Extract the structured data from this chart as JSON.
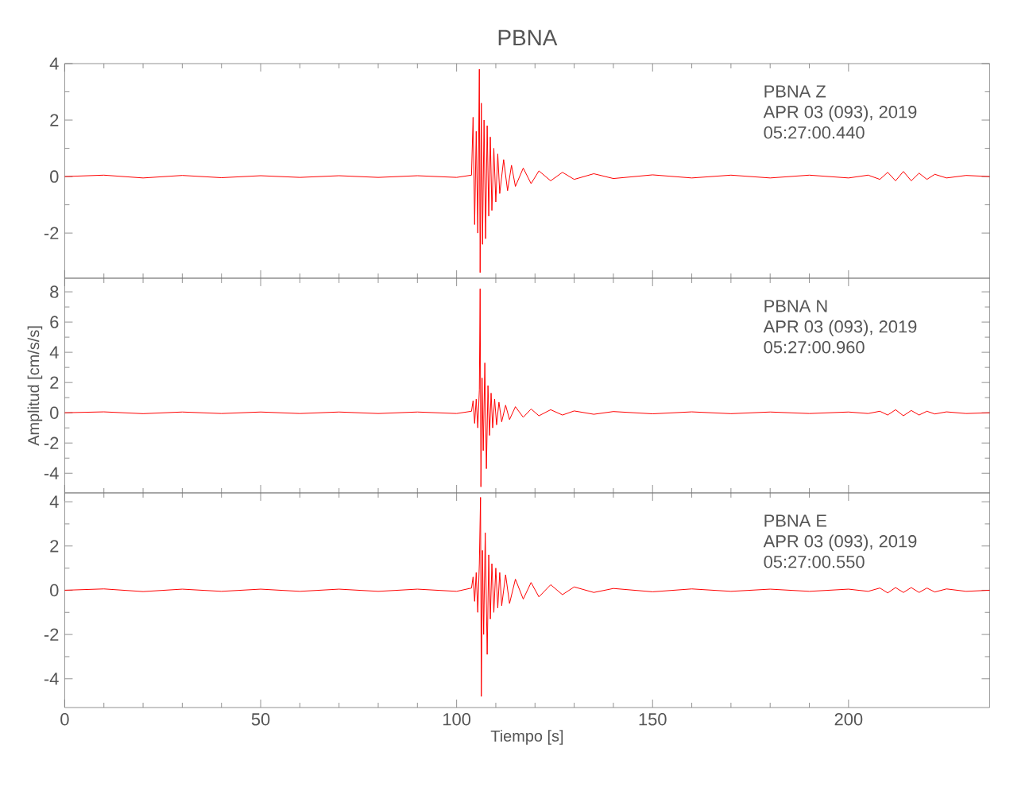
{
  "chart_data": [
    {
      "type": "line",
      "title": "PBNA",
      "annotations": [
        "PBNA   Z",
        "APR 03 (093), 2019",
        "05:27:00.440"
      ],
      "color": "#ff0000",
      "xlim": [
        0,
        236
      ],
      "ylim": [
        -3.6,
        4
      ],
      "xticks": [
        0,
        50,
        100,
        150,
        200
      ],
      "yticks": [
        -2,
        0,
        2,
        4
      ],
      "tick_labels": "y",
      "x": [
        0,
        10,
        20,
        30,
        40,
        50,
        60,
        70,
        80,
        90,
        100,
        103.8,
        104.2,
        104.6,
        105,
        105.4,
        105.8,
        106.0,
        106.3,
        106.6,
        107,
        107.4,
        107.8,
        108.2,
        108.6,
        109,
        109.5,
        110,
        110.5,
        111,
        112,
        113,
        114,
        115,
        117,
        119,
        121,
        124,
        127,
        130,
        135,
        140,
        150,
        160,
        170,
        180,
        190,
        200,
        205,
        208,
        210,
        212,
        214,
        216,
        218,
        220,
        222,
        225,
        230,
        236
      ],
      "values": [
        0,
        0.05,
        -0.05,
        0.04,
        -0.04,
        0.03,
        -0.03,
        0.03,
        -0.03,
        0.03,
        -0.03,
        0.05,
        2.1,
        -1.7,
        1.6,
        -2.0,
        3.8,
        -3.4,
        2.6,
        -2.4,
        2.0,
        -2.2,
        1.8,
        -1.4,
        1.4,
        -1.2,
        1.0,
        -0.9,
        0.8,
        -0.6,
        0.6,
        -0.5,
        0.4,
        -0.35,
        0.3,
        -0.25,
        0.2,
        -0.15,
        0.15,
        -0.1,
        0.1,
        -0.07,
        0.06,
        -0.05,
        0.05,
        -0.05,
        0.05,
        -0.05,
        0.05,
        -0.1,
        0.15,
        -0.15,
        0.18,
        -0.15,
        0.12,
        -0.1,
        0.08,
        -0.05,
        0.04,
        0
      ]
    },
    {
      "type": "line",
      "ylabel": "Amplitud [cm/s/s]",
      "annotations": [
        "PBNA   N",
        "APR 03 (093), 2019",
        "05:27:00.960"
      ],
      "color": "#ff0000",
      "xlim": [
        0,
        236
      ],
      "ylim": [
        -5.3,
        8.9
      ],
      "xticks": [
        0,
        50,
        100,
        150,
        200
      ],
      "yticks": [
        -4,
        -2,
        0,
        2,
        4,
        6,
        8
      ],
      "tick_labels": "y",
      "x": [
        0,
        10,
        20,
        30,
        40,
        50,
        60,
        70,
        80,
        90,
        100,
        103.8,
        104.2,
        104.6,
        105,
        105.4,
        105.8,
        106.0,
        106.2,
        106.5,
        106.8,
        107.2,
        107.6,
        108,
        108.4,
        108.8,
        109.2,
        109.7,
        110.2,
        110.8,
        111.5,
        112.5,
        113.5,
        115,
        117,
        119,
        121,
        124,
        127,
        130,
        135,
        140,
        150,
        160,
        170,
        180,
        190,
        200,
        205,
        208,
        210,
        212,
        214,
        216,
        218,
        220,
        222,
        225,
        230,
        236
      ],
      "values": [
        0,
        0.06,
        -0.06,
        0.05,
        -0.05,
        0.05,
        -0.05,
        0.05,
        -0.05,
        0.05,
        -0.05,
        0.1,
        0.8,
        -0.7,
        0.9,
        -1.0,
        1.5,
        8.2,
        -4.9,
        2.3,
        -2.5,
        3.3,
        -3.7,
        1.8,
        -1.5,
        1.3,
        -1.0,
        0.9,
        -0.8,
        0.7,
        -0.6,
        0.5,
        -0.45,
        0.4,
        -0.3,
        0.25,
        -0.2,
        0.2,
        -0.15,
        0.12,
        -0.1,
        0.08,
        -0.07,
        0.06,
        -0.06,
        0.05,
        -0.05,
        0.05,
        -0.05,
        0.1,
        -0.15,
        0.2,
        -0.2,
        0.15,
        -0.15,
        0.1,
        -0.08,
        0.06,
        -0.05,
        0
      ]
    },
    {
      "type": "line",
      "xlabel": "Tiempo [s]",
      "annotations": [
        "PBNA   E",
        "APR 03 (093), 2019",
        "05:27:00.550"
      ],
      "color": "#ff0000",
      "xlim": [
        0,
        236
      ],
      "ylim": [
        -5.3,
        4.4
      ],
      "xticks": [
        0,
        50,
        100,
        150,
        200
      ],
      "yticks": [
        -4,
        -2,
        0,
        2,
        4
      ],
      "x": [
        0,
        10,
        20,
        30,
        40,
        50,
        60,
        70,
        80,
        90,
        100,
        103.8,
        104.2,
        104.6,
        105,
        105.4,
        105.8,
        106.1,
        106.3,
        106.6,
        106.9,
        107.3,
        107.8,
        108.2,
        108.6,
        109,
        109.5,
        110,
        110.5,
        111,
        111.5,
        112.5,
        113.5,
        115,
        117,
        119,
        121,
        124,
        127,
        130,
        135,
        140,
        150,
        160,
        170,
        180,
        190,
        200,
        205,
        208,
        210,
        212,
        214,
        216,
        218,
        220,
        222,
        225,
        230,
        236
      ],
      "values": [
        0,
        0.06,
        -0.06,
        0.05,
        -0.05,
        0.05,
        -0.05,
        0.05,
        -0.05,
        0.05,
        -0.05,
        0.1,
        0.6,
        -0.5,
        0.8,
        -1.0,
        1.2,
        4.2,
        -4.8,
        1.8,
        -2.0,
        2.6,
        -2.9,
        1.6,
        -1.3,
        1.2,
        -1.0,
        1.0,
        -0.8,
        0.8,
        -0.7,
        0.7,
        -0.6,
        0.5,
        -0.4,
        0.35,
        -0.3,
        0.25,
        -0.2,
        0.15,
        -0.1,
        0.08,
        -0.07,
        0.06,
        -0.05,
        0.05,
        -0.05,
        0.05,
        -0.05,
        0.1,
        -0.12,
        0.12,
        -0.1,
        0.12,
        -0.1,
        0.1,
        -0.08,
        0.06,
        -0.05,
        0
      ]
    }
  ]
}
